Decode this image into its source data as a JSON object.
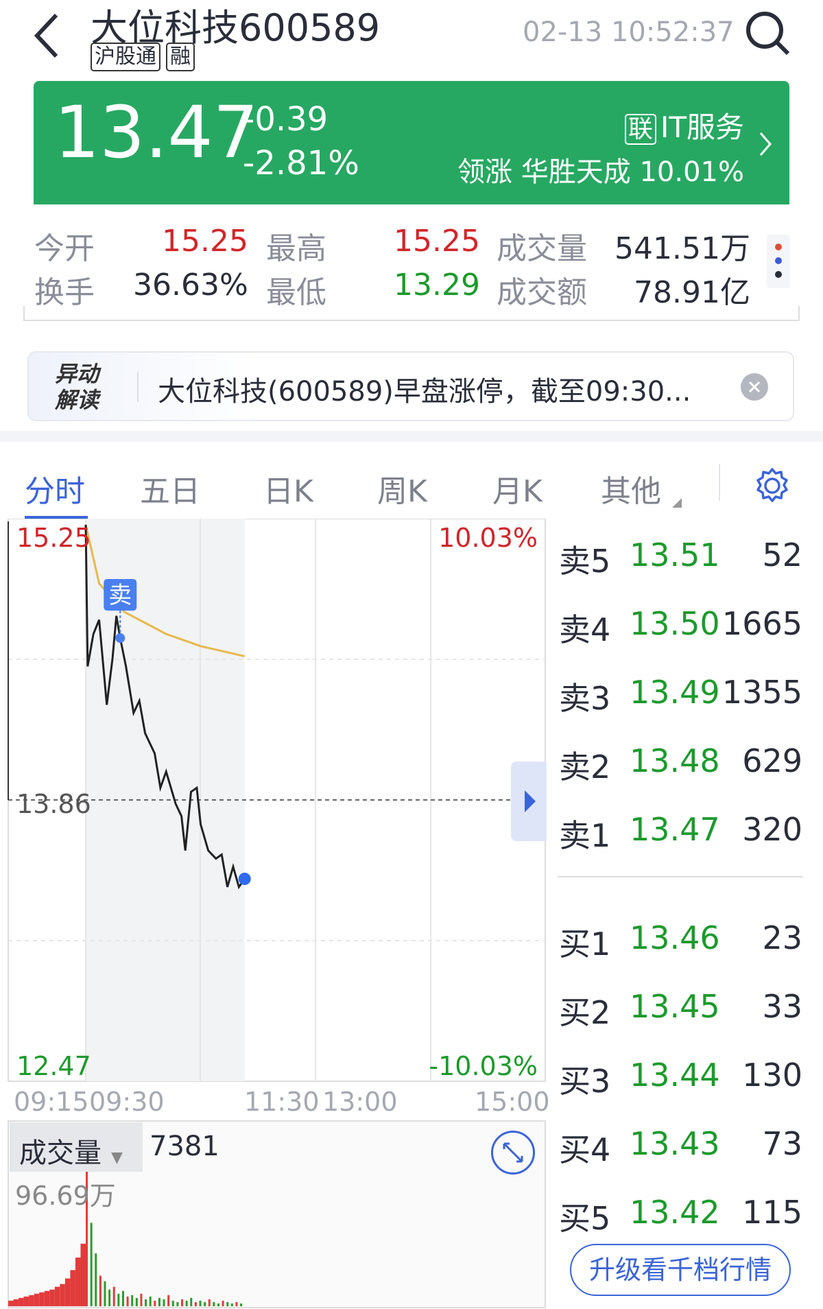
{
  "header": {
    "title": "大位科技",
    "code": "600589",
    "tags": [
      "沪股通",
      "融"
    ],
    "time": "02-13 10:52:37"
  },
  "quote": {
    "price": "13.47",
    "change": "-0.39",
    "change_pct": "-2.81%",
    "sector_tag": "联",
    "sector": "IT服务",
    "leader_label": "领涨",
    "leader_name": "华胜天成",
    "leader_pct": "10.01%",
    "color": "#27a862"
  },
  "stats": [
    {
      "label": "今开",
      "value": "15.25",
      "color": "red"
    },
    {
      "label": "最高",
      "value": "15.25",
      "color": "red"
    },
    {
      "label": "成交量",
      "value": "541.51万",
      "color": "dark"
    },
    {
      "label": "换手",
      "value": "36.63%",
      "color": "dark"
    },
    {
      "label": "最低",
      "value": "13.29",
      "color": "green"
    },
    {
      "label": "成交额",
      "value": "78.91亿",
      "color": "dark"
    }
  ],
  "alert": {
    "badge_line1": "异动",
    "badge_line2": "解读",
    "text": "大位科技(600589)早盘涨停，截至09:30..."
  },
  "tabs": [
    {
      "label": "分时",
      "active": true
    },
    {
      "label": "五日"
    },
    {
      "label": "日K"
    },
    {
      "label": "周K"
    },
    {
      "label": "月K"
    },
    {
      "label": "其他"
    }
  ],
  "chart_data": {
    "type": "line",
    "y_labels": {
      "top": "15.25",
      "mid": "13.86",
      "bottom": "12.47",
      "top_pct": "10.03%",
      "bottom_pct": "-10.03%"
    },
    "ylim": [
      12.47,
      15.25
    ],
    "x_ticks": [
      "09:15",
      "09:30",
      "11:30",
      "13:00",
      "15:00"
    ],
    "price": [
      [
        "09:30",
        15.22
      ],
      [
        "09:31",
        14.52
      ],
      [
        "09:34",
        14.68
      ],
      [
        "09:37",
        14.75
      ],
      [
        "09:41",
        14.33
      ],
      [
        "09:44",
        14.56
      ],
      [
        "09:46",
        14.77
      ],
      [
        "09:48",
        14.66
      ],
      [
        "09:51",
        14.52
      ],
      [
        "09:55",
        14.29
      ],
      [
        "09:58",
        14.35
      ],
      [
        "10:01",
        14.19
      ],
      [
        "10:06",
        14.09
      ],
      [
        "10:09",
        13.92
      ],
      [
        "10:12",
        14.0
      ],
      [
        "10:17",
        13.84
      ],
      [
        "10:20",
        13.78
      ],
      [
        "10:22",
        13.61
      ],
      [
        "10:25",
        13.9
      ],
      [
        "10:28",
        13.92
      ],
      [
        "10:30",
        13.74
      ],
      [
        "10:34",
        13.61
      ],
      [
        "10:38",
        13.57
      ],
      [
        "10:41",
        13.59
      ],
      [
        "10:44",
        13.43
      ],
      [
        "10:47",
        13.53
      ],
      [
        "10:50",
        13.43
      ],
      [
        "10:53",
        13.47
      ]
    ],
    "avg_price": [
      [
        "09:30",
        15.22
      ],
      [
        "09:37",
        14.93
      ],
      [
        "09:50",
        14.79
      ],
      [
        "10:12",
        14.68
      ],
      [
        "10:30",
        14.62
      ],
      [
        "10:53",
        14.57
      ]
    ],
    "marker": {
      "label": "卖",
      "time": "09:48",
      "price": 14.66
    },
    "colors": {
      "price": "#222222",
      "avg": "#e8b84a",
      "up": "#e23b3b",
      "down": "#2d9a2d"
    }
  },
  "volume": {
    "label": "成交量",
    "current": "7381",
    "max_label": "96.69万",
    "bars": [
      4,
      5,
      6,
      7,
      8,
      9,
      10,
      11,
      12,
      14,
      16,
      20,
      26,
      35,
      45,
      96.69,
      60,
      38,
      22,
      18,
      12,
      14,
      9,
      11,
      7,
      8,
      6,
      9,
      5,
      7,
      4,
      6,
      5,
      8,
      4,
      3,
      5,
      4,
      6,
      3,
      4,
      3,
      5,
      3,
      2,
      4,
      3,
      2,
      3,
      2
    ]
  },
  "orderbook": {
    "asks": [
      {
        "label": "卖5",
        "price": "13.51",
        "qty": "52"
      },
      {
        "label": "卖4",
        "price": "13.50",
        "qty": "1665"
      },
      {
        "label": "卖3",
        "price": "13.49",
        "qty": "1355"
      },
      {
        "label": "卖2",
        "price": "13.48",
        "qty": "629"
      },
      {
        "label": "卖1",
        "price": "13.47",
        "qty": "320"
      }
    ],
    "bids": [
      {
        "label": "买1",
        "price": "13.46",
        "qty": "23"
      },
      {
        "label": "买2",
        "price": "13.45",
        "qty": "33"
      },
      {
        "label": "买3",
        "price": "13.44",
        "qty": "130"
      },
      {
        "label": "买4",
        "price": "13.43",
        "qty": "73"
      },
      {
        "label": "买5",
        "price": "13.42",
        "qty": "115"
      }
    ],
    "upgrade_label": "升级看千档行情"
  }
}
